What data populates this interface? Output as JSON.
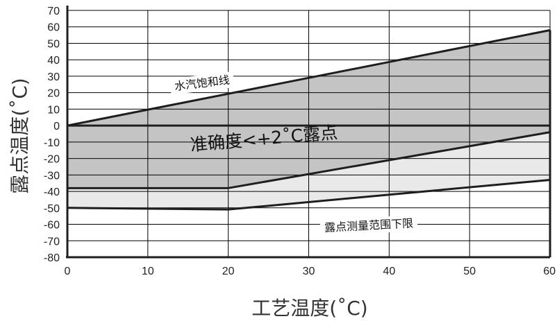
{
  "chart_data": {
    "type": "area",
    "xlabel": "工艺温度(˚C)",
    "ylabel": "露点温度(˚C)",
    "xlim": [
      0,
      60
    ],
    "ylim": [
      -80,
      70
    ],
    "x_ticks": [
      0,
      10,
      20,
      30,
      40,
      50,
      60
    ],
    "y_ticks": [
      70,
      60,
      50,
      40,
      30,
      20,
      10,
      0,
      -10,
      -20,
      -30,
      -40,
      -50,
      -60,
      -70,
      -80
    ],
    "grid": true,
    "series": [
      {
        "x": [
          0,
          60
        ],
        "y": [
          0,
          58
        ]
      },
      {
        "x": [
          0,
          20,
          60
        ],
        "y": [
          -38,
          -38,
          -4
        ]
      },
      {
        "x": [
          0,
          20,
          60
        ],
        "y": [
          -50,
          -51,
          -33
        ]
      },
      {
        "x": [
          0,
          60
        ],
        "y": [
          0,
          0
        ]
      }
    ],
    "annotations": [
      {
        "text": "水汽饱和线"
      },
      {
        "text": "准确度<+2˚C露点"
      },
      {
        "text": "露点测量范围下限"
      }
    ],
    "colors": {
      "dark_band": "#c4c4c4",
      "light_band": "#e9e9e9",
      "line": "#1e1e1e",
      "grid": "#000000"
    }
  }
}
